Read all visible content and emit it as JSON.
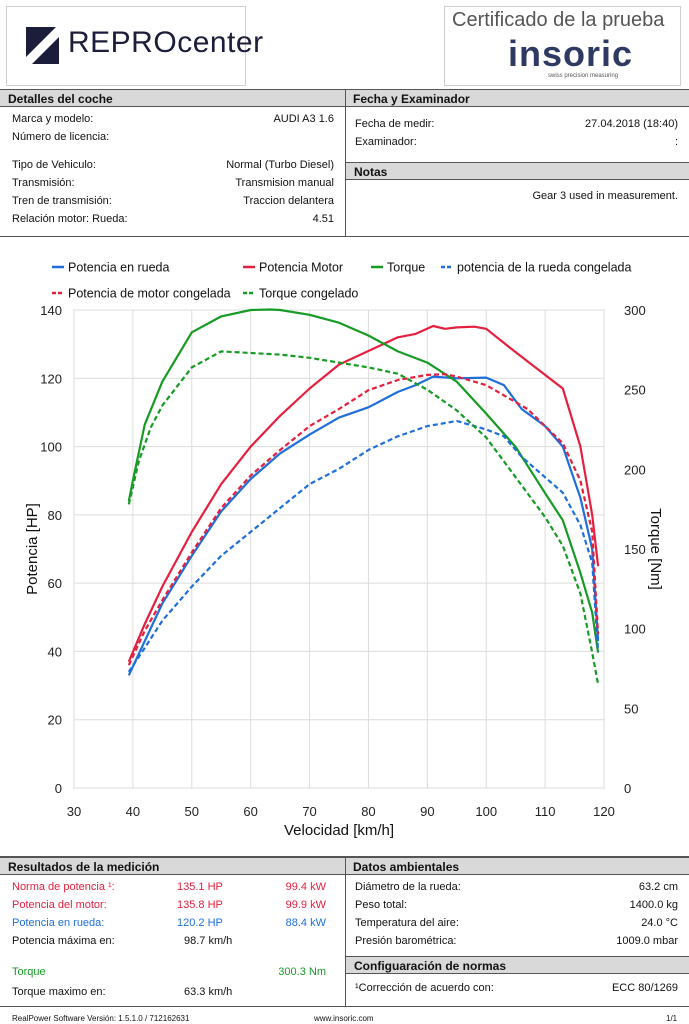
{
  "header": {
    "brand": "REPROcenter",
    "brand_prefix": "REPRO",
    "brand_suffix": "center",
    "cert_title": "Certificado de la prueba",
    "insoric_logo": "insoric",
    "insoric_tagline": "swiss precision measuring"
  },
  "car": {
    "title": "Detalles del coche",
    "rows": [
      {
        "label": "Marca y modelo:",
        "value": "AUDI A3 1.6"
      },
      {
        "label": "Número de licencia:",
        "value": ""
      },
      {
        "label": "Tipo de Vehiculo:",
        "value": "Normal (Turbo Diesel)"
      },
      {
        "label": "Transmisión:",
        "value": "Transmision manual"
      },
      {
        "label": "Tren de transmisión:",
        "value": "Traccion delantera"
      },
      {
        "label": "Relación motor: Rueda:",
        "value": "4.51"
      }
    ]
  },
  "exam": {
    "title": "Fecha y Examinador",
    "date_label": "Fecha de medir:",
    "date_value": "27.04.2018 (18:40)",
    "examiner_label": "Examinador:",
    "examiner_value": ":"
  },
  "notes": {
    "title": "Notas",
    "text": "Gear 3 used in measurement."
  },
  "chart_data": {
    "type": "line",
    "xlabel": "Velocidad [km/h]",
    "ylabel": "Potencia [HP]",
    "y2label": "Torque [Nm]",
    "xlim": [
      30,
      120
    ],
    "ylim": [
      0,
      140
    ],
    "y2lim": [
      0,
      300
    ],
    "x_ticks": [
      30,
      40,
      50,
      60,
      70,
      80,
      90,
      100,
      110,
      120
    ],
    "y_ticks": [
      0,
      20,
      40,
      60,
      80,
      100,
      120,
      140
    ],
    "y2_ticks": [
      0,
      50,
      100,
      150,
      200,
      250,
      300
    ],
    "grid": true,
    "legend_position": "top",
    "series": [
      {
        "name": "Potencia en rueda",
        "axis": "left",
        "color": "#1e6fd9",
        "dash": false,
        "x": [
          39.3,
          42,
          45,
          50,
          55,
          60,
          65,
          70,
          75,
          80,
          85,
          88,
          91,
          95,
          100,
          103,
          106,
          110,
          113,
          116,
          118,
          119
        ],
        "y": [
          33,
          43,
          54,
          68,
          81,
          90.5,
          98,
          103.5,
          108.5,
          111.5,
          116,
          118,
          120.5,
          120,
          120.2,
          118,
          111,
          106,
          100,
          85,
          70,
          43
        ]
      },
      {
        "name": "Potencia Motor",
        "axis": "left",
        "color": "#e5203f",
        "dash": false,
        "x": [
          39.3,
          42,
          45,
          50,
          55,
          60,
          65,
          70,
          75,
          80,
          85,
          88,
          91,
          93,
          95,
          98,
          100,
          104,
          107,
          110,
          113,
          116,
          118,
          119
        ],
        "y": [
          37,
          48,
          59,
          75,
          89,
          100,
          109,
          117,
          124,
          128,
          132,
          133,
          135.3,
          134.5,
          134.9,
          135.1,
          134.5,
          129,
          125,
          121,
          117,
          100,
          80,
          65
        ]
      },
      {
        "name": "Torque",
        "axis": "right",
        "color": "#169b24",
        "dash": false,
        "x": [
          39.3,
          40,
          42,
          45,
          50,
          55,
          60,
          63.3,
          65,
          70,
          75,
          80,
          85,
          90,
          95,
          100,
          105,
          110,
          113,
          116,
          118,
          119
        ],
        "y": [
          180,
          193,
          228,
          255,
          286,
          296,
          300,
          300.3,
          300,
          297,
          292,
          284,
          274,
          267,
          255,
          235,
          214,
          185,
          168,
          135,
          110,
          85
        ]
      },
      {
        "name": "potencia de la rueda congelada",
        "axis": "left",
        "color": "#1e6fd9",
        "dash": true,
        "x": [
          39.3,
          42,
          45,
          50,
          55,
          60,
          65,
          70,
          75,
          80,
          85,
          90,
          95,
          100,
          103,
          106,
          110,
          113,
          116,
          118,
          119
        ],
        "y": [
          34,
          41,
          49,
          59,
          68,
          75,
          82,
          89,
          93.5,
          99,
          103,
          106,
          107.5,
          105,
          103,
          97,
          91,
          86.5,
          77,
          66,
          40
        ]
      },
      {
        "name": "Potencia de motor congelada",
        "axis": "left",
        "color": "#e5203f",
        "dash": true,
        "x": [
          39.3,
          42,
          45,
          50,
          55,
          60,
          65,
          70,
          75,
          80,
          85,
          90,
          93,
          95,
          98,
          100,
          104,
          107,
          110,
          113,
          116,
          118,
          119
        ],
        "y": [
          36,
          46,
          55,
          69,
          82,
          91.5,
          99,
          106,
          111,
          116.5,
          119.5,
          121,
          121.2,
          120.5,
          119,
          118,
          114,
          111,
          106,
          101,
          90,
          75,
          45
        ]
      },
      {
        "name": "Torque congelado",
        "axis": "right",
        "color": "#169b24",
        "dash": true,
        "x": [
          39.3,
          41,
          43,
          45,
          50,
          55,
          60,
          65,
          70,
          75,
          80,
          85,
          90,
          95,
          100,
          105,
          110,
          113,
          116,
          118,
          119
        ],
        "y": [
          178,
          205,
          226,
          240,
          264,
          274,
          273,
          272,
          270,
          267,
          264,
          260,
          250,
          237,
          220,
          195,
          170,
          152,
          122,
          85,
          65
        ]
      }
    ]
  },
  "results": {
    "title": "Resultados de la medición",
    "rows": [
      {
        "label": "Norma de potencia ¹:",
        "hp": "135.1 HP",
        "kw": "99.4 kW",
        "color": "#e5203f"
      },
      {
        "label": "Potencia del motor:",
        "hp": "135.8 HP",
        "kw": "99.9 kW",
        "color": "#e5203f"
      },
      {
        "label": "Potencia en rueda:",
        "hp": "120.2 HP",
        "kw": "88.4 kW",
        "color": "#1e6fd9"
      }
    ],
    "max_power_label": "Potencia máxima en:",
    "max_power_value": "98.7 km/h",
    "torque_label": "Torque",
    "torque_value": "300.3 Nm",
    "torque_color": "#169b24",
    "max_torque_label": "Torque maximo en:",
    "max_torque_value": "63.3 km/h"
  },
  "ambient": {
    "title": "Datos ambientales",
    "rows": [
      {
        "label": "Diámetro de la rueda:",
        "value": "63.2 cm"
      },
      {
        "label": "Peso total:",
        "value": "1400.0 kg"
      },
      {
        "label": "Temperatura del aire:",
        "value": "24.0 °C"
      },
      {
        "label": "Presión barométrica:",
        "value": "1009.0 mbar"
      }
    ]
  },
  "norms": {
    "title": "Configuaración de normas",
    "label": "¹Corrección de acuerdo con:",
    "value": "ECC 80/1269"
  },
  "footer": {
    "software": "RealPower Software Versión: 1.5.1.0 / 712162631",
    "url": "www.insoric.com",
    "page": "1/1"
  }
}
